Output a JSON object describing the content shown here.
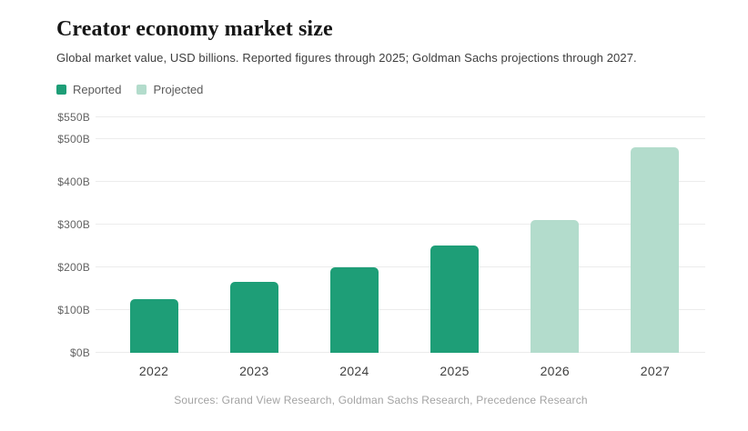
{
  "header": {
    "title": "Creator economy market size",
    "subtitle": "Global market value, USD billions. Reported figures through 2025; Goldman Sachs projections through 2027."
  },
  "legend": {
    "items": [
      {
        "label": "Reported",
        "color": "#1e9e77"
      },
      {
        "label": "Projected",
        "color": "#b3dccc"
      }
    ]
  },
  "chart_data": {
    "type": "bar",
    "title": "Creator economy market size",
    "subtitle": "Global market value, USD billions. Reported figures through 2025; Goldman Sachs projections through 2027.",
    "categories": [
      "2022",
      "2023",
      "2024",
      "2025",
      "2026",
      "2027"
    ],
    "values": [
      125,
      165,
      200,
      250,
      310,
      480
    ],
    "status": [
      "reported",
      "reported",
      "reported",
      "reported",
      "projected",
      "projected"
    ],
    "series": [
      {
        "name": "Reported",
        "values": [
          125,
          165,
          200,
          250,
          null,
          null
        ]
      },
      {
        "name": "Projected",
        "values": [
          null,
          null,
          null,
          null,
          310,
          480
        ]
      }
    ],
    "xlabel": "",
    "ylabel": "USD billions",
    "ylim": [
      0,
      550
    ],
    "yticks": [
      0,
      100,
      200,
      300,
      400,
      500,
      550
    ],
    "ytick_labels": [
      "$0B",
      "$100B",
      "$200B",
      "$300B",
      "$400B",
      "$500B",
      "$550B"
    ],
    "grid": true,
    "legend_position": "top-left",
    "colors": {
      "reported": "#1e9e77",
      "projected": "#b3dccc"
    }
  },
  "footer": {
    "sources": "Sources: Grand View Research, Goldman Sachs Research, Precedence Research"
  }
}
